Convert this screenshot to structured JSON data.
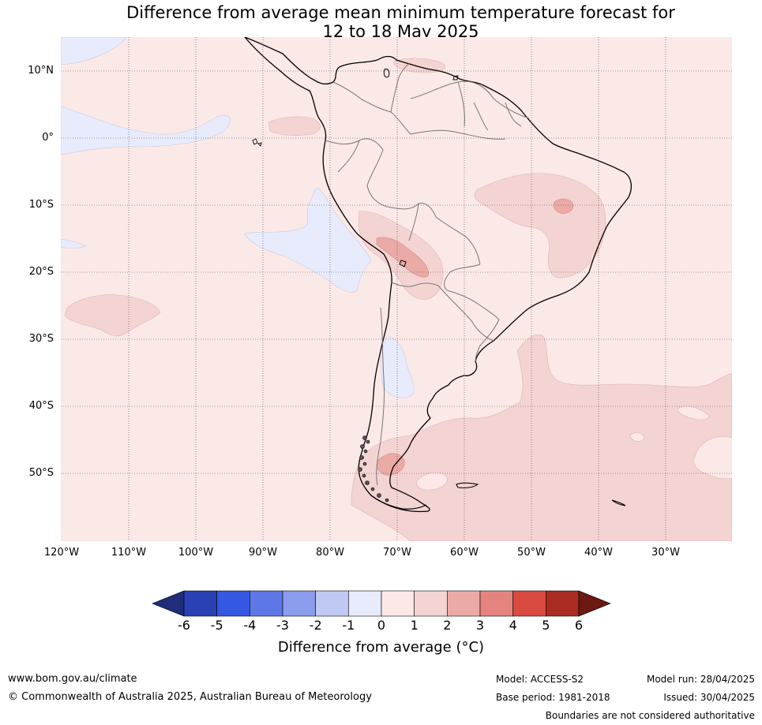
{
  "title": {
    "line1": "Difference from average mean minimum temperature forecast for",
    "line2": "12 to 18 May 2025"
  },
  "lat_labels": [
    "10°N",
    "0°",
    "10°S",
    "20°S",
    "30°S",
    "40°S",
    "50°S"
  ],
  "lon_labels": [
    "120°W",
    "110°W",
    "100°W",
    "90°W",
    "80°W",
    "70°W",
    "60°W",
    "50°W",
    "40°W",
    "30°W"
  ],
  "colorbar": {
    "title": "Difference from average (°C)",
    "ticks": [
      "-6",
      "-5",
      "-4",
      "-3",
      "-2",
      "-1",
      "0",
      "1",
      "2",
      "3",
      "4",
      "5",
      "6"
    ],
    "colors": [
      "#1f2d7b",
      "#2a40b5",
      "#3458e2",
      "#5d78e6",
      "#8b9ced",
      "#c0c8f4",
      "#e8ebfb",
      "#fbe8e7",
      "#f4d4d2",
      "#ebaaa6",
      "#e5847e",
      "#d94a40",
      "#aa2b22",
      "#6b1912"
    ]
  },
  "map_colors": {
    "background": "#fbe9e7",
    "plus_1_2": "#f4d4d2",
    "plus_2_3": "#ebaaa6",
    "minus_0_1": "#e8ebfb",
    "coast": "#000000",
    "borders": "#777777"
  },
  "footer": {
    "website": "www.bom.gov.au/climate",
    "copyright": "© Commonwealth of Australia 2025, Australian Bureau of Meteorology",
    "model": "Model: ACCESS-S2",
    "base_period": "Base period: 1981-2018",
    "model_run": "Model run: 28/04/2025",
    "issued": "Issued: 30/04/2025",
    "disclaimer": "Boundaries are not considered authoritative"
  }
}
